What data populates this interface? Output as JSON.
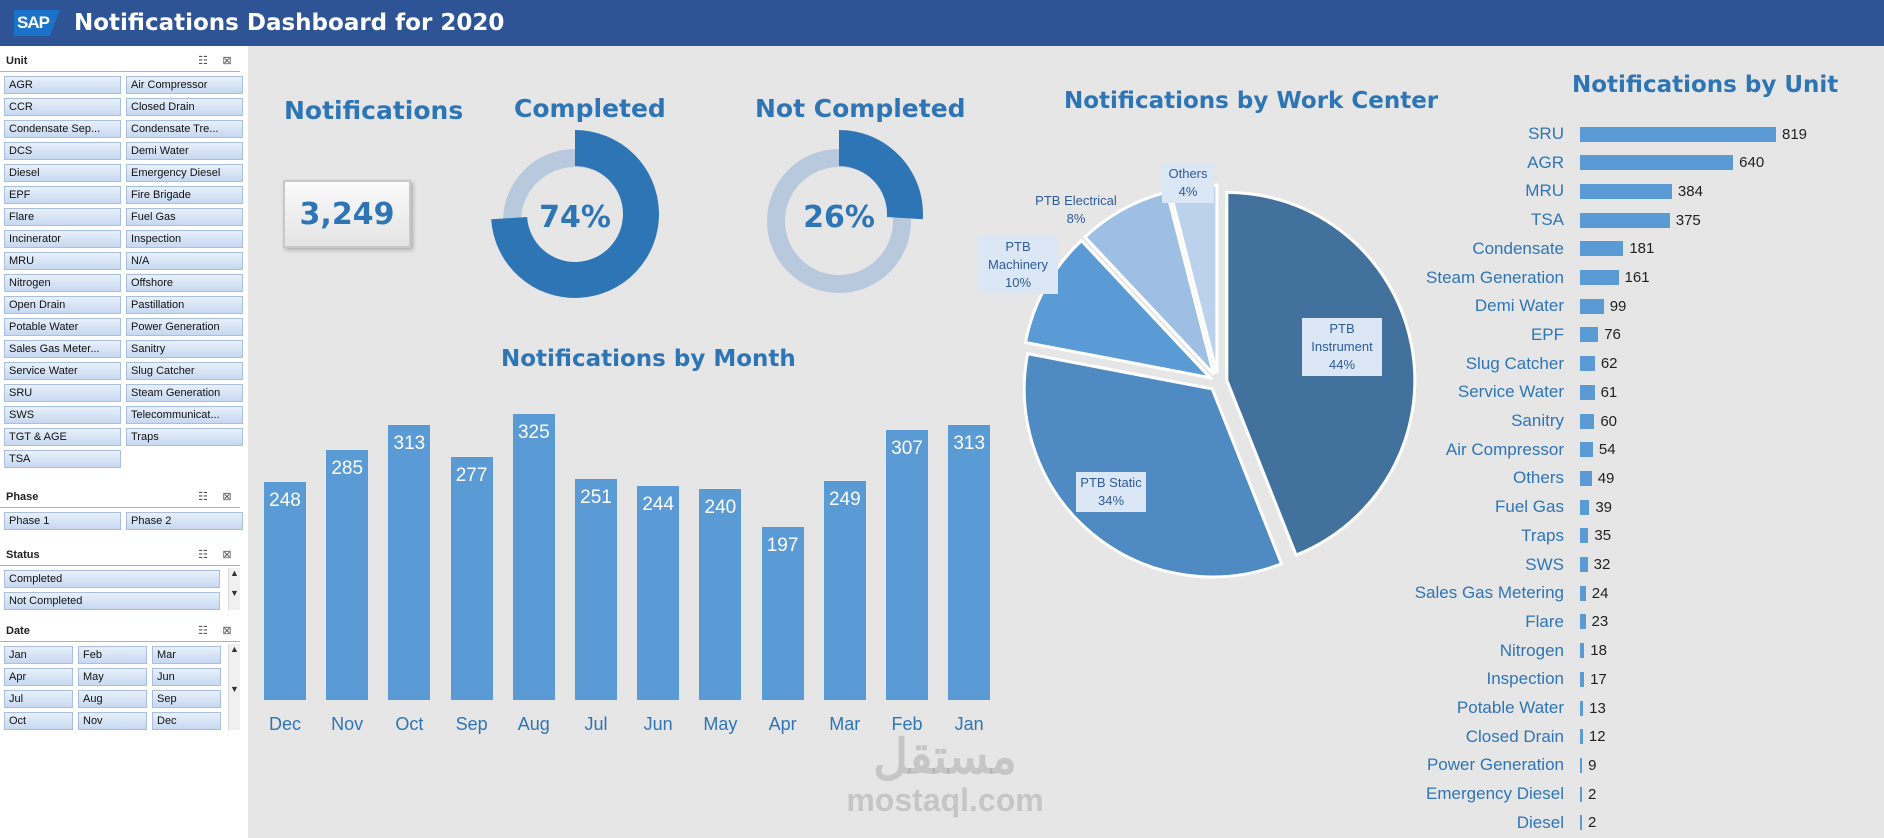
{
  "header": {
    "logo_text": "SAP",
    "title": "Notifications Dashboard for 2020",
    "background": "#2f5496"
  },
  "slicers": {
    "unit": {
      "title": "Unit",
      "items": [
        "AGR",
        "Air Compressor",
        "CCR",
        "Closed Drain",
        "Condensate Sep...",
        "Condensate Tre...",
        "DCS",
        "Demi Water",
        "Diesel",
        "Emergency Diesel",
        "EPF",
        "Fire Brigade",
        "Flare",
        "Fuel Gas",
        "Incinerator",
        "Inspection",
        "MRU",
        "N/A",
        "Nitrogen",
        "Offshore",
        "Open Drain",
        "Pastillation",
        "Potable Water",
        "Power Generation",
        "Sales Gas Meter...",
        "Sanitry",
        "Service Water",
        "Slug Catcher",
        "SRU",
        "Steam Generation",
        "SWS",
        "Telecommunicat...",
        "TGT & AGE",
        "Traps",
        "TSA"
      ]
    },
    "phase": {
      "title": "Phase",
      "items": [
        "Phase 1",
        "Phase 2"
      ]
    },
    "status": {
      "title": "Status",
      "items": [
        "Completed",
        "Not Completed"
      ]
    },
    "date": {
      "title": "Date",
      "items": [
        "Jan",
        "Feb",
        "Mar",
        "Apr",
        "May",
        "Jun",
        "Jul",
        "Aug",
        "Sep",
        "Oct",
        "Nov",
        "Dec"
      ]
    }
  },
  "kpis": {
    "notifications_label": "Notifications",
    "notifications_value": "3,249",
    "completed_label": "Completed",
    "completed_value": "74%",
    "completed_fraction": 0.74,
    "not_completed_label": "Not Completed",
    "not_completed_value": "26%",
    "not_completed_fraction": 0.26
  },
  "titles": {
    "by_month": "Notifications by Month",
    "by_work_center": "Notifications by Work Center",
    "by_unit": "Notifications by Unit"
  },
  "colors": {
    "accent": "#2e75b6",
    "bar": "#5b9bd5",
    "donut_track": "#b9c9dd",
    "pie": [
      "#41719c",
      "#4f8bc2",
      "#5b9bd5",
      "#9dbfe4",
      "#bcd2ec"
    ]
  },
  "watermark": {
    "arabic": "مستقل",
    "latin": "mostaql.com"
  },
  "chart_data": [
    {
      "type": "bar",
      "title": "Notifications by Month",
      "categories": [
        "Dec",
        "Nov",
        "Oct",
        "Sep",
        "Aug",
        "Jul",
        "Jun",
        "May",
        "Apr",
        "Mar",
        "Feb",
        "Jan"
      ],
      "values": [
        248,
        285,
        313,
        277,
        325,
        251,
        244,
        240,
        197,
        249,
        307,
        313
      ],
      "ylim": [
        0,
        330
      ]
    },
    {
      "type": "pie",
      "title": "Notifications by Work Center",
      "categories": [
        "PTB Instrument",
        "PTB Static",
        "PTB Machinery",
        "PTB Electrical",
        "Others"
      ],
      "values": [
        44,
        34,
        10,
        8,
        4
      ],
      "labels": [
        "44%",
        "34%",
        "10%",
        "8%",
        "4%"
      ]
    },
    {
      "type": "bar",
      "title": "Notifications by Unit",
      "orientation": "horizontal",
      "categories": [
        "SRU",
        "AGR",
        "MRU",
        "TSA",
        "Condensate",
        "Steam Generation",
        "Demi Water",
        "EPF",
        "Slug Catcher",
        "Service Water",
        "Sanitry",
        "Air Compressor",
        "Others",
        "Fuel Gas",
        "Traps",
        "SWS",
        "Sales Gas Metering",
        "Flare",
        "Nitrogen",
        "Inspection",
        "Potable Water",
        "Closed Drain",
        "Power Generation",
        "Emergency Diesel",
        "Diesel"
      ],
      "values": [
        819,
        640,
        384,
        375,
        181,
        161,
        99,
        76,
        62,
        61,
        60,
        54,
        49,
        39,
        35,
        32,
        24,
        23,
        18,
        17,
        13,
        12,
        9,
        2,
        2
      ]
    }
  ]
}
